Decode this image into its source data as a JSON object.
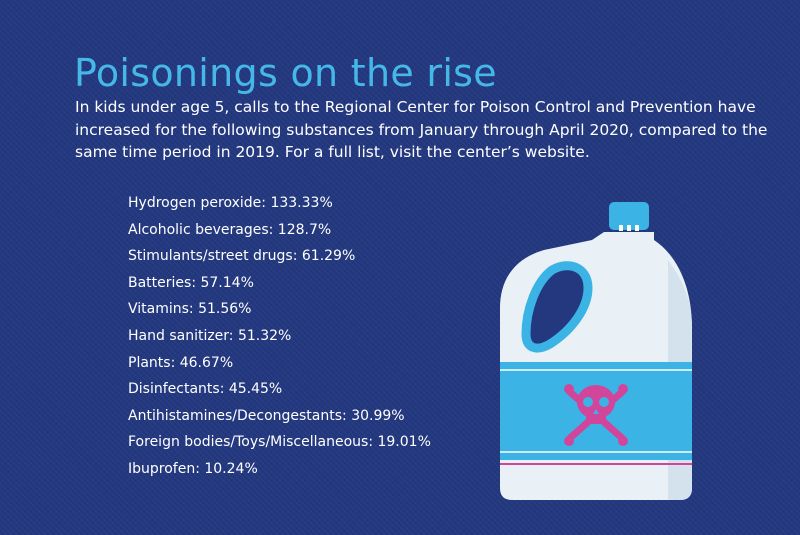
{
  "title": "Poisonings on the rise",
  "intro": "In kids under age 5, calls to the Regional Center for Poison Control and Prevention have increased for the following substances from January through April 2020, compared to the same time period in 2019. For a full list, visit the center’s website.",
  "stats": [
    "Hydrogen peroxide: 133.33%",
    "Alcoholic beverages: 128.7%",
    "Stimulants/street drugs: 61.29%",
    "Batteries: 57.14%",
    "Vitamins: 51.56%",
    "Hand sanitizer: 51.32%",
    "Plants: 46.67%",
    "Disinfectants: 45.45%",
    "Antihistamines/Decongestants: 30.99%",
    "Foreign bodies/Toys/Miscellaneous: 19.01%",
    "Ibuprofen: 10.24%"
  ],
  "illustration": {
    "icon": "poison-bottle-icon",
    "label_icon": "skull-crossbones-icon",
    "colors": {
      "background": "#23387f",
      "title": "#46b8e8",
      "bottle_body": "#e9f1f7",
      "bottle_label": "#3bb3e4",
      "cap": "#3bb3e4",
      "skull": "#d1459a"
    }
  }
}
